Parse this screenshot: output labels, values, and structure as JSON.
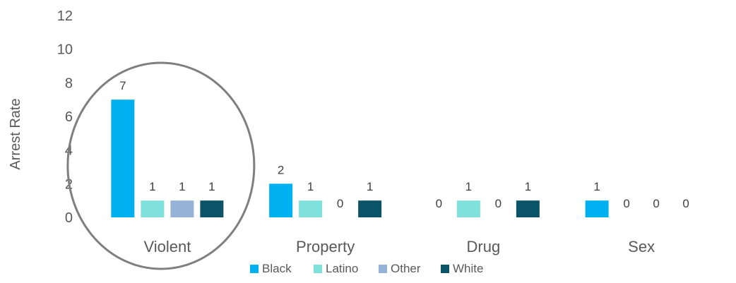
{
  "chart_data": {
    "type": "bar",
    "title": "",
    "xlabel": "",
    "ylabel": "Arrest Rate",
    "ylim": [
      0,
      12
    ],
    "yticks": [
      0,
      2,
      4,
      6,
      8,
      10,
      12
    ],
    "grid": false,
    "legend_position": "bottom",
    "categories": [
      "Violent",
      "Property",
      "Drug",
      "Sex"
    ],
    "series": [
      {
        "name": "Black",
        "color": "#00B0F0",
        "values": [
          7,
          2,
          0,
          1
        ]
      },
      {
        "name": "Latino",
        "color": "#7FE0DC",
        "values": [
          1,
          1,
          1,
          0
        ]
      },
      {
        "name": "Other",
        "color": "#95B3D7",
        "values": [
          1,
          0,
          0,
          0
        ]
      },
      {
        "name": "White",
        "color": "#0B5468",
        "values": [
          1,
          1,
          1,
          0
        ]
      }
    ],
    "annotations": [
      {
        "type": "ellipse",
        "around_category": "Violent",
        "color": "#7F7F7F"
      }
    ]
  }
}
